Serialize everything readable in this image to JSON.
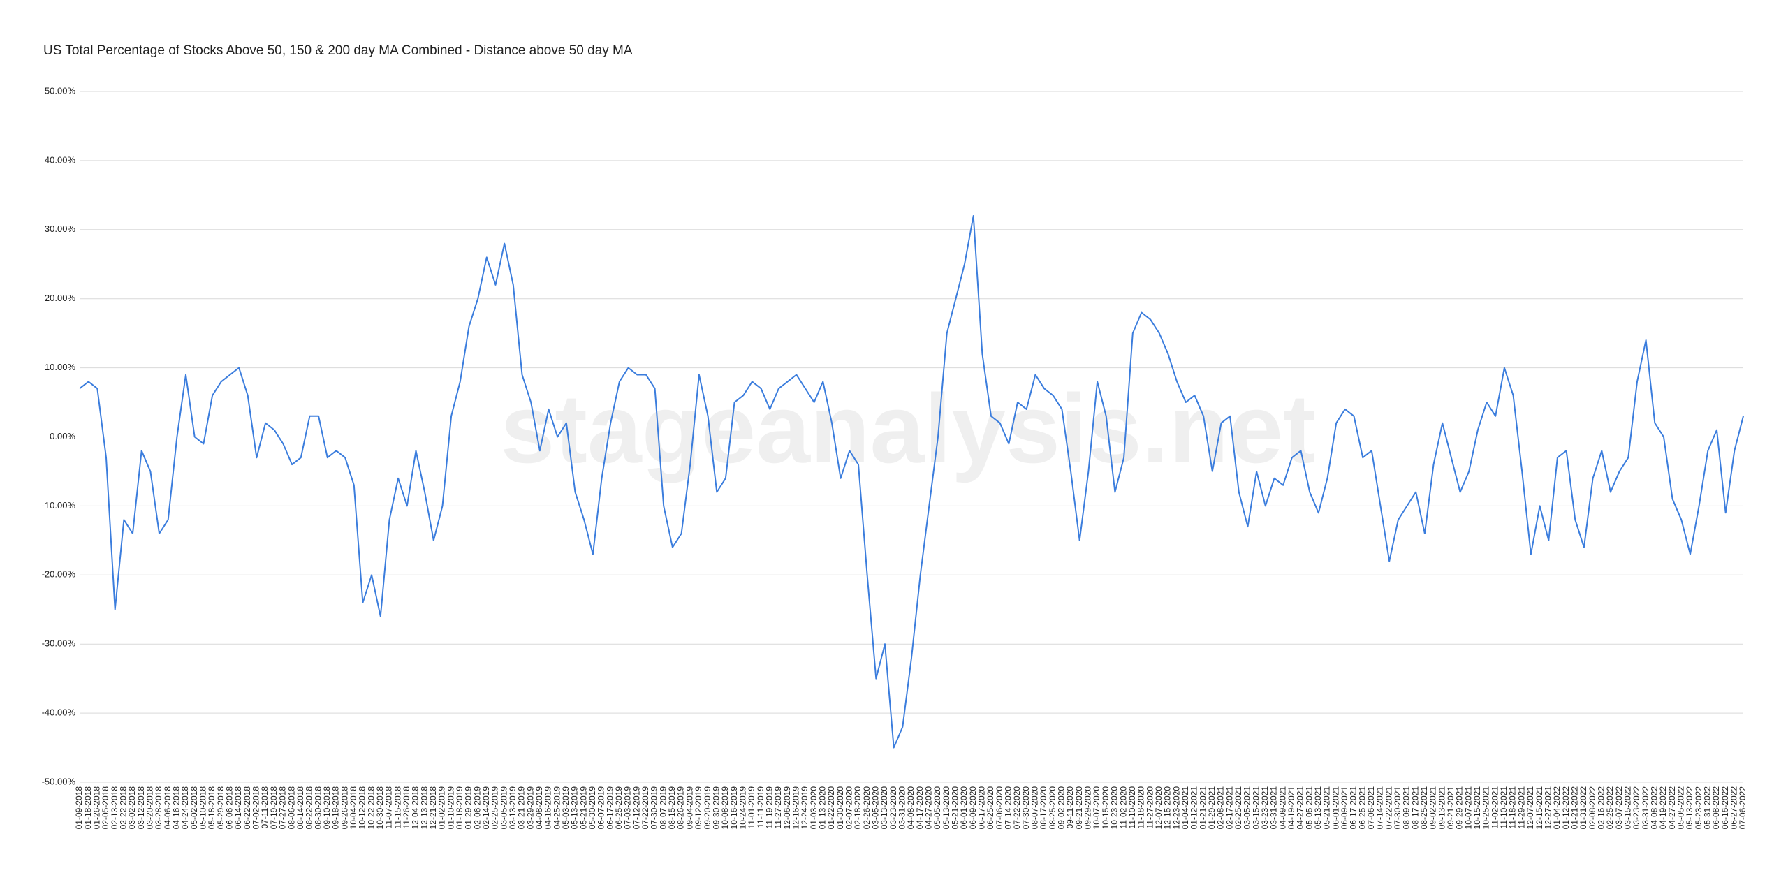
{
  "chart_data": {
    "type": "line",
    "title": "US Total Percentage of Stocks Above 50, 150 & 200 day MA Combined - Distance above 50 day MA",
    "watermark": "stageanalysis.net",
    "categories": [
      "01-09-2018",
      "01-18-2018",
      "01-26-2018",
      "02-05-2018",
      "02-13-2018",
      "02-22-2018",
      "03-02-2018",
      "03-12-2018",
      "03-20-2018",
      "03-28-2018",
      "04-06-2018",
      "04-16-2018",
      "04-24-2018",
      "05-02-2018",
      "05-10-2018",
      "05-18-2018",
      "05-29-2018",
      "06-06-2018",
      "06-14-2018",
      "06-22-2018",
      "07-02-2018",
      "07-11-2018",
      "07-19-2018",
      "07-27-2018",
      "08-06-2018",
      "08-14-2018",
      "08-22-2018",
      "08-30-2018",
      "09-10-2018",
      "09-18-2018",
      "09-26-2018",
      "10-04-2018",
      "10-12-2018",
      "10-22-2018",
      "10-30-2018",
      "11-07-2018",
      "11-15-2018",
      "11-26-2018",
      "12-04-2018",
      "12-13-2018",
      "12-21-2018",
      "01-02-2019",
      "01-10-2019",
      "01-18-2019",
      "01-29-2019",
      "02-06-2019",
      "02-14-2019",
      "02-25-2019",
      "03-05-2019",
      "03-13-2019",
      "03-21-2019",
      "03-29-2019",
      "04-08-2019",
      "04-16-2019",
      "04-25-2019",
      "05-03-2019",
      "05-13-2019",
      "05-21-2019",
      "05-30-2019",
      "06-07-2019",
      "06-17-2019",
      "06-25-2019",
      "07-03-2019",
      "07-12-2019",
      "07-22-2019",
      "07-30-2019",
      "08-07-2019",
      "08-15-2019",
      "08-26-2019",
      "09-04-2019",
      "09-12-2019",
      "09-20-2019",
      "09-30-2019",
      "10-08-2019",
      "10-16-2019",
      "10-24-2019",
      "11-01-2019",
      "11-11-2019",
      "11-19-2019",
      "11-27-2019",
      "12-06-2019",
      "12-16-2019",
      "12-24-2019",
      "01-03-2020",
      "01-13-2020",
      "01-22-2020",
      "01-30-2020",
      "02-07-2020",
      "02-18-2020",
      "02-26-2020",
      "03-05-2020",
      "03-13-2020",
      "03-23-2020",
      "03-31-2020",
      "04-08-2020",
      "04-17-2020",
      "04-27-2020",
      "05-05-2020",
      "05-13-2020",
      "05-21-2020",
      "06-01-2020",
      "06-09-2020",
      "06-17-2020",
      "06-25-2020",
      "07-06-2020",
      "07-14-2020",
      "07-22-2020",
      "07-30-2020",
      "08-07-2020",
      "08-17-2020",
      "08-25-2020",
      "09-02-2020",
      "09-11-2020",
      "09-21-2020",
      "09-29-2020",
      "10-07-2020",
      "10-15-2020",
      "10-23-2020",
      "11-02-2020",
      "11-10-2020",
      "11-18-2020",
      "11-27-2020",
      "12-07-2020",
      "12-15-2020",
      "12-23-2020",
      "01-04-2021",
      "01-12-2021",
      "01-21-2021",
      "01-29-2021",
      "02-08-2021",
      "02-17-2021",
      "02-25-2021",
      "03-05-2021",
      "03-15-2021",
      "03-23-2021",
      "03-31-2021",
      "04-09-2021",
      "04-19-2021",
      "04-27-2021",
      "05-05-2021",
      "05-13-2021",
      "05-21-2021",
      "06-01-2021",
      "06-09-2021",
      "06-17-2021",
      "06-25-2021",
      "07-06-2021",
      "07-14-2021",
      "07-22-2021",
      "07-30-2021",
      "08-09-2021",
      "08-17-2021",
      "08-25-2021",
      "09-02-2021",
      "09-13-2021",
      "09-21-2021",
      "09-29-2021",
      "10-07-2021",
      "10-15-2021",
      "10-25-2021",
      "11-02-2021",
      "11-10-2021",
      "11-18-2021",
      "11-29-2021",
      "12-07-2021",
      "12-15-2021",
      "12-27-2021",
      "01-04-2022",
      "01-12-2022",
      "01-21-2022",
      "01-31-2022",
      "02-08-2022",
      "02-16-2022",
      "02-25-2022",
      "03-07-2022",
      "03-15-2022",
      "03-23-2022",
      "03-31-2022",
      "04-08-2022",
      "04-19-2022",
      "04-27-2022",
      "05-05-2022",
      "05-13-2022",
      "05-23-2022",
      "05-31-2022",
      "06-08-2022",
      "06-16-2022",
      "06-27-2022",
      "07-06-2022"
    ],
    "series": [
      {
        "color": "#3b7ddd",
        "values": [
          7,
          8,
          7,
          -3,
          -25,
          -12,
          -14,
          -2,
          -5,
          -14,
          -12,
          0,
          9,
          0,
          -1,
          6,
          8,
          9,
          10,
          6,
          -3,
          2,
          1,
          -1,
          -4,
          -3,
          3,
          3,
          -3,
          -2,
          -3,
          -7,
          -24,
          -20,
          -26,
          -12,
          -6,
          -10,
          -2,
          -8,
          -15,
          -10,
          3,
          8,
          16,
          20,
          26,
          22,
          28,
          22,
          9,
          5,
          -2,
          4,
          0,
          2,
          -8,
          -12,
          -17,
          -6,
          2,
          8,
          10,
          9,
          9,
          7,
          -10,
          -16,
          -14,
          -4,
          9,
          3,
          -8,
          -6,
          5,
          6,
          8,
          7,
          4,
          7,
          8,
          9,
          7,
          5,
          8,
          2,
          -6,
          -2,
          -4,
          -20,
          -35,
          -30,
          -45,
          -42,
          -32,
          -20,
          -10,
          0,
          15,
          20,
          25,
          32,
          12,
          3,
          2,
          -1,
          5,
          4,
          9,
          7,
          6,
          4,
          -5,
          -15,
          -5,
          8,
          3,
          -8,
          -3,
          15,
          18,
          17,
          15,
          12,
          8,
          5,
          6,
          3,
          -5,
          2,
          3,
          -8,
          -13,
          -5,
          -10,
          -6,
          -7,
          -3,
          -2,
          -8,
          -11,
          -6,
          2,
          4,
          3,
          -3,
          -2,
          -10,
          -18,
          -12,
          -10,
          -8,
          -14,
          -4,
          2,
          -3,
          -8,
          -5,
          1,
          5,
          3,
          10,
          6,
          -5,
          -17,
          -10,
          -15,
          -3,
          -2,
          -12,
          -16,
          -6,
          -2,
          -8,
          -5,
          -3,
          8,
          14,
          2,
          0,
          -9,
          -12,
          -17,
          -10,
          -2,
          1,
          -11,
          -2,
          3
        ]
      }
    ],
    "ylim": [
      -50,
      50
    ],
    "yticks": [
      {
        "value": -50,
        "label": "-50.00%"
      },
      {
        "value": -40,
        "label": "-40.00%"
      },
      {
        "value": -30,
        "label": "-30.00%"
      },
      {
        "value": -20,
        "label": "-20.00%"
      },
      {
        "value": -10,
        "label": "-10.00%"
      },
      {
        "value": 0,
        "label": "0.00%"
      },
      {
        "value": 10,
        "label": "10.00%"
      },
      {
        "value": 20,
        "label": "20.00%"
      },
      {
        "value": 30,
        "label": "30.00%"
      },
      {
        "value": 40,
        "label": "40.00%"
      },
      {
        "value": 50,
        "label": "50.00%"
      }
    ],
    "grid": true
  }
}
